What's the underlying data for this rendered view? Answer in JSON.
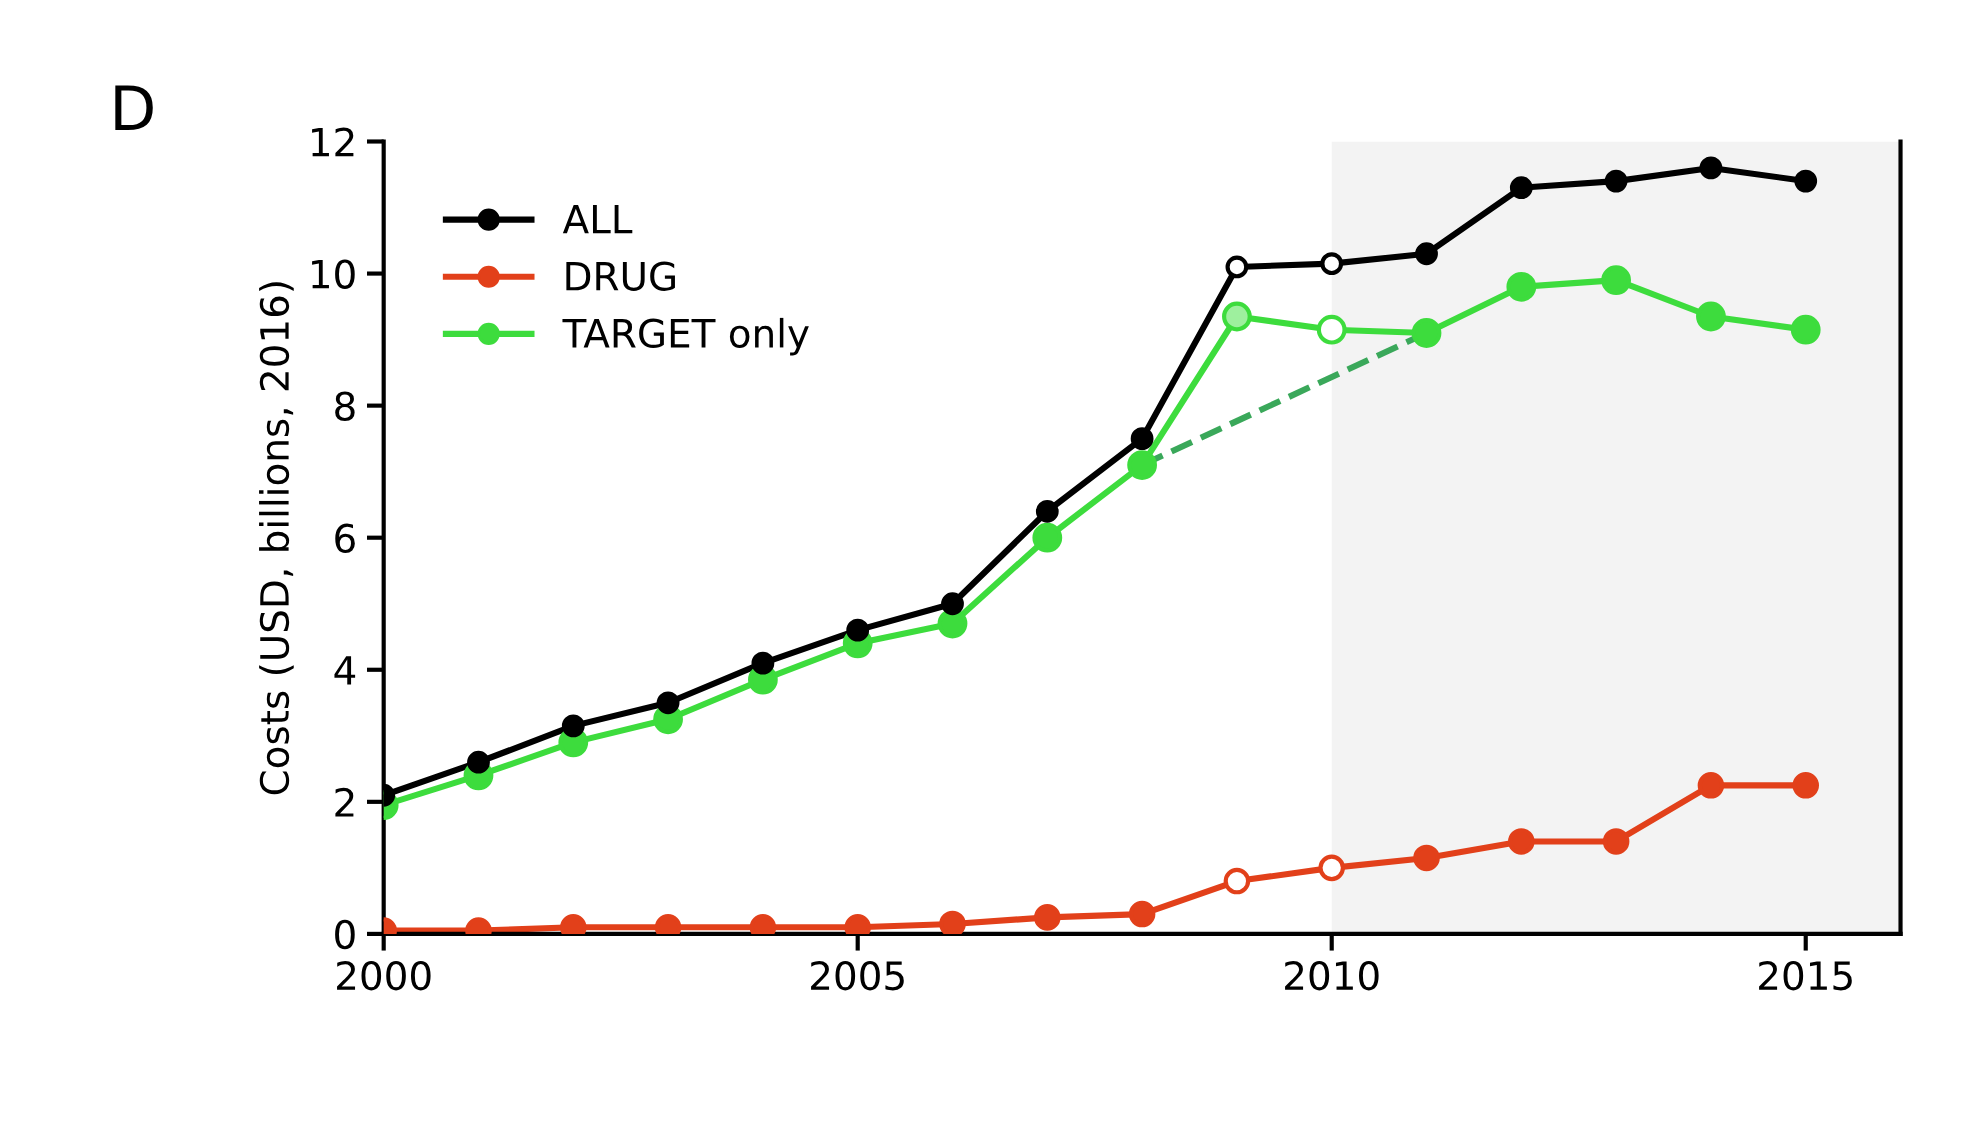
{
  "chart_data": {
    "type": "line",
    "ylabel": "Costs (USD, billions, 2016)",
    "annotations": [
      "D"
    ],
    "x": [
      2000,
      2001,
      2002,
      2003,
      2004,
      2005,
      2006,
      2007,
      2008,
      2009,
      2010,
      2011,
      2012,
      2013,
      2014,
      2015
    ],
    "series": [
      {
        "name": "ALL",
        "color": "#000000",
        "values": [
          2.1,
          2.6,
          3.15,
          3.5,
          4.1,
          4.6,
          5.0,
          6.4,
          7.5,
          10.1,
          10.15,
          10.3,
          11.3,
          11.4,
          11.6,
          11.4
        ],
        "colors": [
          "#000000",
          "#000000",
          "#000000",
          "#000000",
          "#000000",
          "#000000",
          "#000000",
          "#000000",
          "#000000",
          "#ffffff",
          "#ffffff",
          "#000000",
          "#000000",
          "#000000",
          "#000000",
          "#000000"
        ]
      },
      {
        "name": "DRUG",
        "color": "#e2401a",
        "values": [
          0.05,
          0.05,
          0.1,
          0.1,
          0.1,
          0.1,
          0.15,
          0.25,
          0.3,
          0.8,
          1.0,
          1.15,
          1.4,
          1.4,
          2.25,
          2.25
        ],
        "colors": [
          "#e2401a",
          "#e2401a",
          "#e2401a",
          "#e2401a",
          "#e2401a",
          "#e2401a",
          "#e2401a",
          "#e2401a",
          "#e2401a",
          "#ffffff",
          "#ffffff",
          "#e2401a",
          "#e2401a",
          "#e2401a",
          "#e2401a",
          "#e2401a"
        ]
      },
      {
        "name": "TARGET only",
        "color": "#3ddc3d",
        "values": [
          1.95,
          2.4,
          2.9,
          3.25,
          3.85,
          4.4,
          4.7,
          6.0,
          7.1,
          9.35,
          9.15,
          9.1,
          9.8,
          9.9,
          9.35,
          9.15
        ],
        "colors": [
          "#3ddc3d",
          "#3ddc3d",
          "#3ddc3d",
          "#3ddc3d",
          "#3ddc3d",
          "#3ddc3d",
          "#3ddc3d",
          "#3ddc3d",
          "#3ddc3d",
          "#9ef09e",
          "#ffffff",
          "#3ddc3d",
          "#3ddc3d",
          "#3ddc3d",
          "#3ddc3d",
          "#3ddc3d"
        ]
      },
      {
        "type": "line",
        "color": "#3aa85a",
        "x": [
          2008,
          2011
        ],
        "values": [
          7.1,
          9.1
        ],
        "line_style": "dashed",
        "marker": "none"
      }
    ],
    "bands": [
      {
        "axis": "x",
        "from": 2010,
        "to": 2016,
        "color": "#f3f3f3"
      }
    ],
    "xlim": [
      2000,
      2016
    ],
    "xticks": [
      2000,
      2005,
      2010,
      2015
    ],
    "ylim": [
      0,
      12
    ],
    "yticks": [
      0,
      2,
      4,
      6,
      8,
      10,
      12
    ],
    "marker": "circle",
    "line_style": "solid",
    "grid": false,
    "legend": "top left"
  }
}
